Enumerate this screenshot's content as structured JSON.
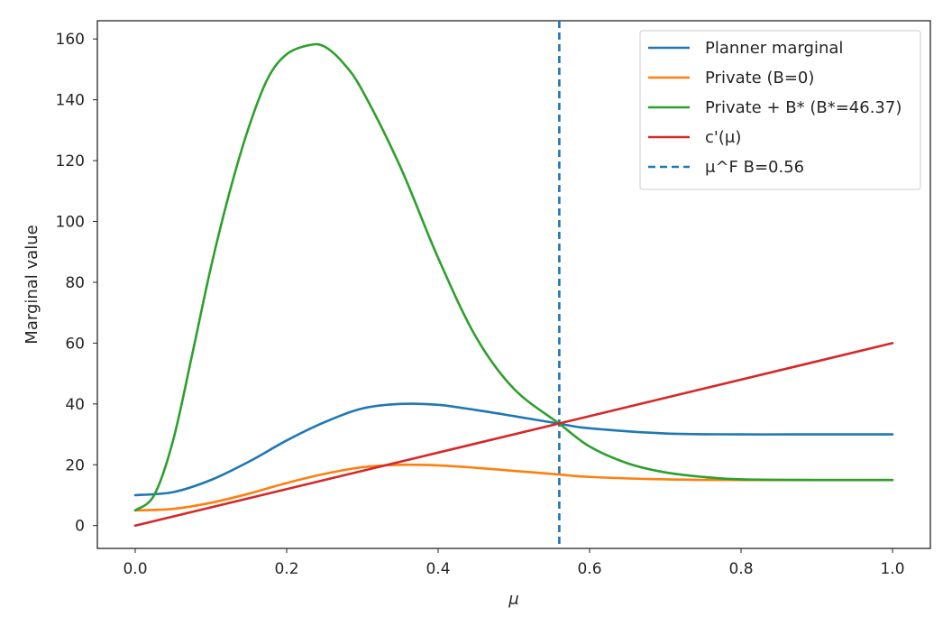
{
  "chart_data": {
    "type": "line",
    "title": "",
    "xlabel": "μ",
    "ylabel": "Marginal value",
    "xlim": [
      -0.05,
      1.05
    ],
    "ylim": [
      -7.5,
      166
    ],
    "xticks": [
      0.0,
      0.2,
      0.4,
      0.6,
      0.8,
      1.0
    ],
    "xtick_labels": [
      "0.0",
      "0.2",
      "0.4",
      "0.6",
      "0.8",
      "1.0"
    ],
    "yticks": [
      0,
      20,
      40,
      60,
      80,
      100,
      120,
      140,
      160
    ],
    "ytick_labels": [
      "0",
      "20",
      "40",
      "60",
      "80",
      "100",
      "120",
      "140",
      "160"
    ],
    "grid": false,
    "legend_position": "upper-right",
    "series": [
      {
        "name": "Planner marginal",
        "color": "#1f77b4",
        "style": "solid",
        "x": [
          0.0,
          0.05,
          0.1,
          0.15,
          0.2,
          0.25,
          0.3,
          0.35,
          0.4,
          0.45,
          0.5,
          0.56,
          0.6,
          0.7,
          0.8,
          0.9,
          1.0
        ],
        "y": [
          10,
          11,
          15,
          21,
          28,
          34,
          38.5,
          40,
          39.7,
          38,
          36,
          33.5,
          32,
          30.3,
          30,
          30,
          30
        ]
      },
      {
        "name": "Private (B=0)",
        "color": "#ff7f0e",
        "style": "solid",
        "x": [
          0.0,
          0.05,
          0.1,
          0.15,
          0.2,
          0.25,
          0.3,
          0.35,
          0.4,
          0.45,
          0.5,
          0.56,
          0.6,
          0.7,
          0.8,
          0.9,
          1.0
        ],
        "y": [
          5,
          5.5,
          7.5,
          10.5,
          14,
          17,
          19.2,
          20,
          19.8,
          19,
          18,
          16.8,
          16,
          15.2,
          15,
          15,
          15
        ]
      },
      {
        "name": "Private + B* (B*=46.37)",
        "color": "#2ca02c",
        "style": "solid",
        "x": [
          0.0,
          0.025,
          0.05,
          0.075,
          0.1,
          0.125,
          0.15,
          0.175,
          0.2,
          0.23,
          0.25,
          0.275,
          0.3,
          0.35,
          0.4,
          0.45,
          0.5,
          0.56,
          0.6,
          0.65,
          0.7,
          0.75,
          0.8,
          0.9,
          1.0
        ],
        "y": [
          5,
          10,
          28,
          56,
          85,
          110,
          131,
          147,
          155,
          158,
          157.5,
          152,
          143,
          118,
          88,
          62,
          45,
          33.5,
          26,
          20.5,
          17.5,
          16,
          15.2,
          15,
          15
        ]
      },
      {
        "name": "c'(μ)",
        "color": "#d62728",
        "style": "solid",
        "x": [
          0.0,
          1.0
        ],
        "y": [
          0,
          60
        ]
      }
    ],
    "reference_lines": [
      {
        "name": "μ^F B=0.56",
        "orientation": "vertical",
        "x": 0.56,
        "color": "#1f77b4",
        "style": "dashed"
      }
    ]
  }
}
